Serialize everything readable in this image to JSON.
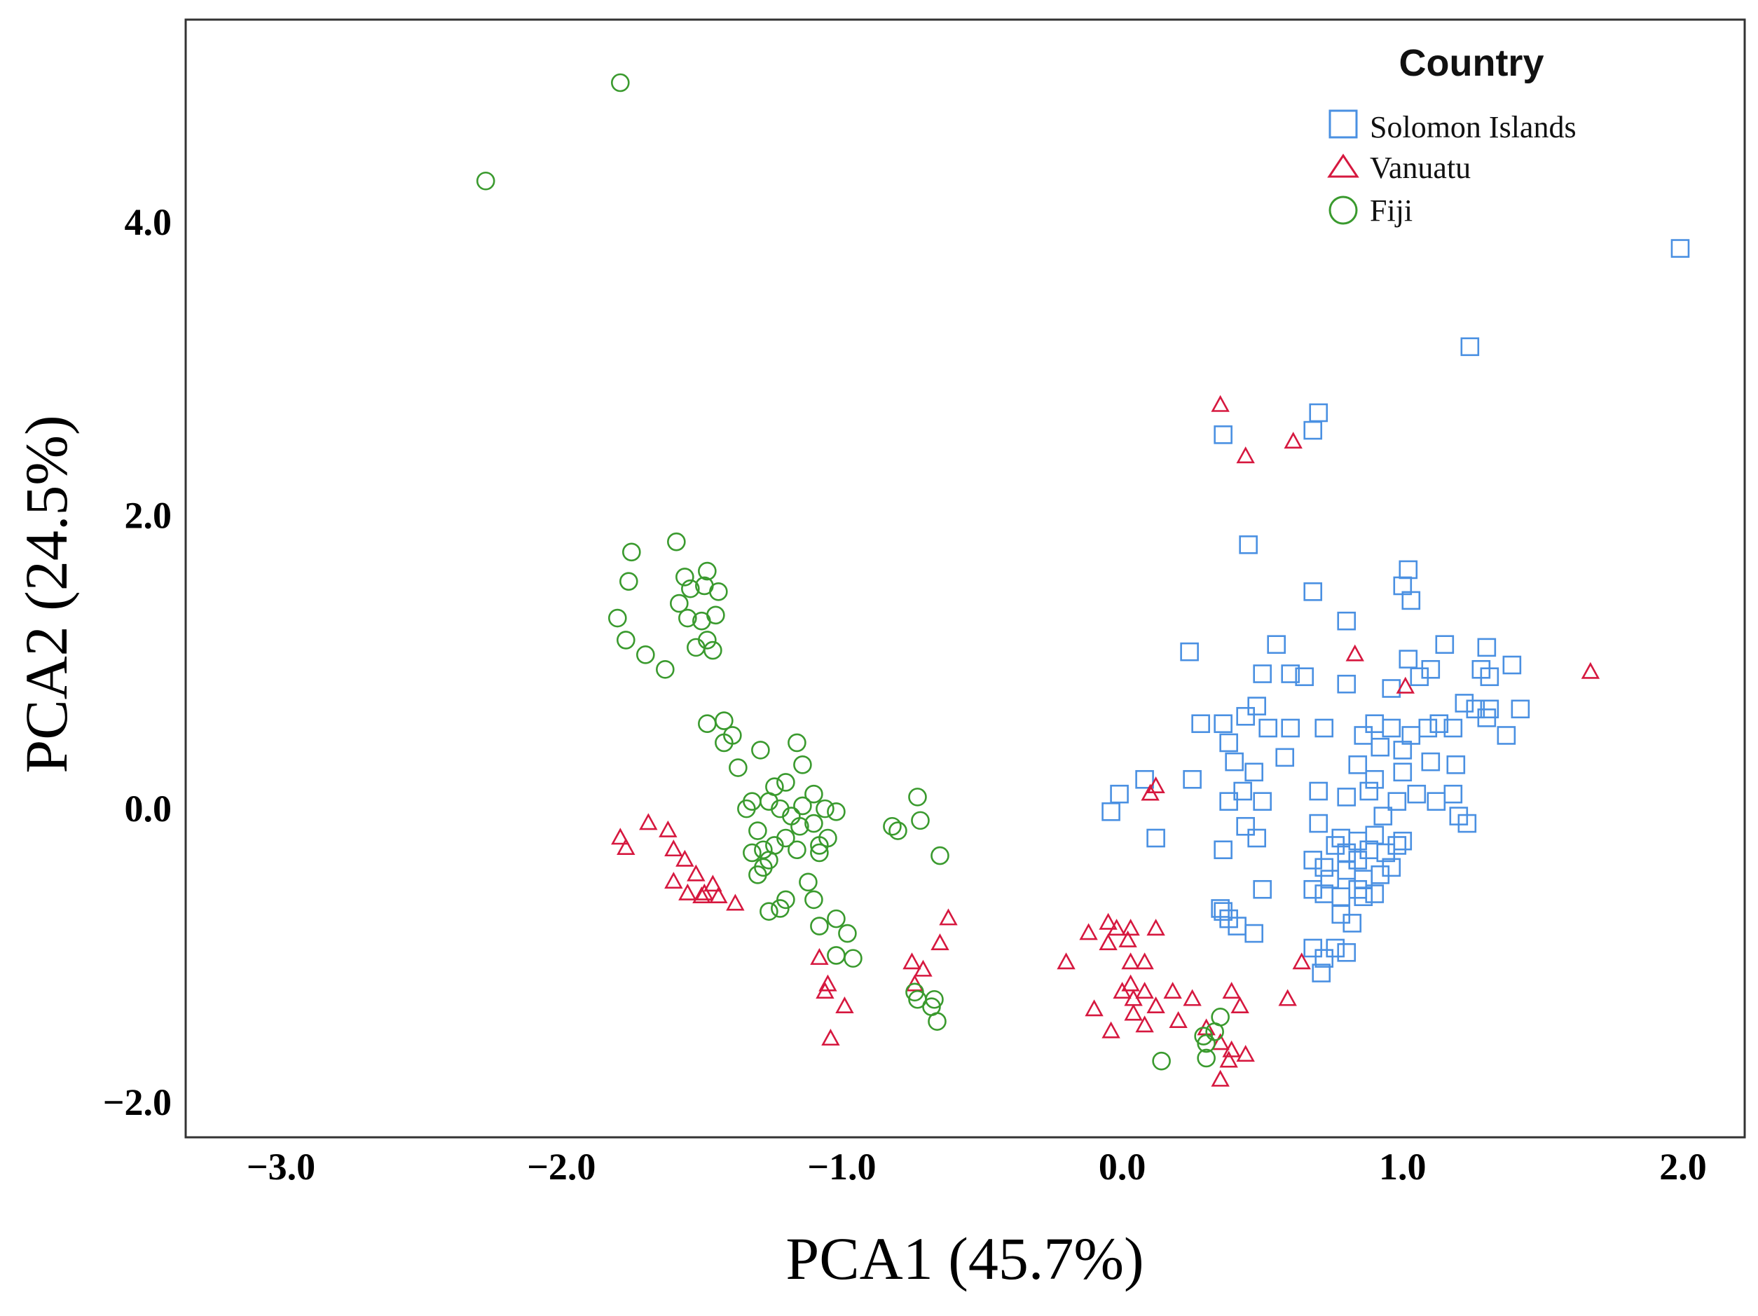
{
  "chart_data": {
    "type": "scatter",
    "xlabel": "PCA1 (45.7%)",
    "ylabel": "PCA2 (24.5%)",
    "xlim": [
      -3.34,
      2.22
    ],
    "ylim": [
      -2.24,
      5.38
    ],
    "x_ticks": [
      -3.0,
      -2.0,
      -1.0,
      0.0,
      1.0,
      2.0
    ],
    "y_ticks": [
      -2.0,
      0.0,
      2.0,
      4.0
    ],
    "x_tick_labels": [
      "−3.0",
      "−2.0",
      "−1.0",
      "0.0",
      "1.0",
      "2.0"
    ],
    "y_tick_labels": [
      "−2.0",
      "0.0",
      "2.0",
      "4.0"
    ],
    "grid": false,
    "legend": {
      "title": "Country",
      "position": "top-right"
    },
    "series": [
      {
        "name": "Solomon Islands",
        "marker": "square",
        "color": "#4a90e2",
        "points": [
          [
            1.99,
            3.82
          ],
          [
            1.24,
            3.15
          ],
          [
            0.7,
            2.7
          ],
          [
            0.36,
            2.55
          ],
          [
            0.68,
            2.58
          ],
          [
            0.45,
            1.8
          ],
          [
            1.02,
            1.63
          ],
          [
            0.68,
            1.48
          ],
          [
            1.0,
            1.52
          ],
          [
            1.03,
            1.42
          ],
          [
            0.8,
            1.28
          ],
          [
            0.24,
            1.07
          ],
          [
            0.55,
            1.12
          ],
          [
            1.15,
            1.12
          ],
          [
            1.3,
            1.1
          ],
          [
            0.5,
            0.92
          ],
          [
            0.6,
            0.92
          ],
          [
            0.65,
            0.9
          ],
          [
            1.02,
            1.02
          ],
          [
            1.28,
            0.95
          ],
          [
            1.39,
            0.98
          ],
          [
            0.8,
            0.85
          ],
          [
            0.96,
            0.82
          ],
          [
            1.06,
            0.9
          ],
          [
            1.31,
            0.9
          ],
          [
            1.1,
            0.95
          ],
          [
            0.28,
            0.58
          ],
          [
            0.36,
            0.58
          ],
          [
            0.44,
            0.63
          ],
          [
            0.48,
            0.7
          ],
          [
            0.52,
            0.55
          ],
          [
            0.6,
            0.55
          ],
          [
            0.72,
            0.55
          ],
          [
            0.86,
            0.5
          ],
          [
            0.9,
            0.58
          ],
          [
            0.96,
            0.55
          ],
          [
            1.03,
            0.5
          ],
          [
            1.09,
            0.55
          ],
          [
            1.13,
            0.58
          ],
          [
            1.18,
            0.55
          ],
          [
            1.22,
            0.72
          ],
          [
            1.26,
            0.68
          ],
          [
            1.31,
            0.68
          ],
          [
            1.37,
            0.5
          ],
          [
            1.42,
            0.68
          ],
          [
            1.3,
            0.62
          ],
          [
            0.38,
            0.45
          ],
          [
            0.4,
            0.32
          ],
          [
            0.47,
            0.25
          ],
          [
            0.58,
            0.35
          ],
          [
            0.92,
            0.42
          ],
          [
            1.0,
            0.4
          ],
          [
            1.1,
            0.32
          ],
          [
            1.19,
            0.3
          ],
          [
            -0.04,
            -0.02
          ],
          [
            -0.01,
            0.1
          ],
          [
            0.08,
            0.2
          ],
          [
            0.25,
            0.2
          ],
          [
            0.38,
            0.05
          ],
          [
            0.43,
            0.12
          ],
          [
            0.5,
            0.05
          ],
          [
            0.7,
            0.12
          ],
          [
            0.8,
            0.08
          ],
          [
            0.88,
            0.12
          ],
          [
            0.98,
            0.05
          ],
          [
            1.05,
            0.1
          ],
          [
            1.12,
            0.05
          ],
          [
            1.18,
            0.1
          ],
          [
            1.2,
            -0.05
          ],
          [
            1.23,
            -0.1
          ],
          [
            0.12,
            -0.2
          ],
          [
            0.36,
            -0.28
          ],
          [
            0.44,
            -0.12
          ],
          [
            0.48,
            -0.2
          ],
          [
            0.7,
            -0.1
          ],
          [
            0.78,
            -0.2
          ],
          [
            0.84,
            -0.22
          ],
          [
            0.88,
            -0.28
          ],
          [
            0.94,
            -0.3
          ],
          [
            0.98,
            -0.25
          ],
          [
            1.0,
            -0.22
          ],
          [
            0.68,
            -0.35
          ],
          [
            0.72,
            -0.4
          ],
          [
            0.8,
            -0.42
          ],
          [
            0.86,
            -0.48
          ],
          [
            0.92,
            -0.45
          ],
          [
            0.68,
            -0.55
          ],
          [
            0.72,
            -0.58
          ],
          [
            0.78,
            -0.6
          ],
          [
            0.84,
            -0.55
          ],
          [
            0.9,
            -0.58
          ],
          [
            0.78,
            -0.72
          ],
          [
            0.82,
            -0.78
          ],
          [
            0.68,
            -0.95
          ],
          [
            0.72,
            -1.02
          ],
          [
            0.76,
            -0.95
          ],
          [
            0.8,
            -0.98
          ],
          [
            0.71,
            -1.12
          ],
          [
            0.35,
            -0.68
          ],
          [
            0.38,
            -0.75
          ],
          [
            0.41,
            -0.8
          ],
          [
            0.47,
            -0.85
          ],
          [
            0.5,
            -0.55
          ],
          [
            0.36,
            -0.7
          ],
          [
            0.76,
            -0.25
          ],
          [
            0.84,
            -0.35
          ],
          [
            0.9,
            -0.18
          ],
          [
            0.96,
            -0.4
          ],
          [
            0.74,
            -0.48
          ],
          [
            0.8,
            -0.3
          ],
          [
            0.86,
            -0.6
          ],
          [
            0.93,
            -0.05
          ],
          [
            1.0,
            0.25
          ],
          [
            0.84,
            0.3
          ],
          [
            0.9,
            0.2
          ]
        ]
      },
      {
        "name": "Vanuatu",
        "marker": "triangle",
        "color": "#d6183f",
        "points": [
          [
            0.35,
            2.75
          ],
          [
            0.61,
            2.5
          ],
          [
            0.44,
            2.4
          ],
          [
            1.67,
            0.93
          ],
          [
            0.83,
            1.05
          ],
          [
            1.01,
            0.83
          ],
          [
            0.12,
            0.15
          ],
          [
            0.1,
            0.1
          ],
          [
            -1.79,
            -0.2
          ],
          [
            -1.77,
            -0.27
          ],
          [
            -1.69,
            -0.1
          ],
          [
            -1.62,
            -0.15
          ],
          [
            -1.6,
            -0.28
          ],
          [
            -1.56,
            -0.35
          ],
          [
            -1.52,
            -0.45
          ],
          [
            -1.6,
            -0.5
          ],
          [
            -1.55,
            -0.58
          ],
          [
            -1.5,
            -0.6
          ],
          [
            -1.46,
            -0.52
          ],
          [
            -1.49,
            -0.58
          ],
          [
            -1.44,
            -0.6
          ],
          [
            -1.38,
            -0.65
          ],
          [
            -1.08,
            -1.02
          ],
          [
            -1.05,
            -1.2
          ],
          [
            -1.06,
            -1.25
          ],
          [
            -0.99,
            -1.35
          ],
          [
            -1.04,
            -1.57
          ],
          [
            -0.75,
            -1.05
          ],
          [
            -0.71,
            -1.1
          ],
          [
            -0.74,
            -1.2
          ],
          [
            -0.65,
            -0.92
          ],
          [
            -0.62,
            -0.75
          ],
          [
            -0.2,
            -1.05
          ],
          [
            -0.12,
            -0.85
          ],
          [
            -0.05,
            -0.78
          ],
          [
            -0.02,
            -0.82
          ],
          [
            -0.05,
            -0.92
          ],
          [
            0.03,
            -0.82
          ],
          [
            0.12,
            -0.82
          ],
          [
            0.03,
            -1.05
          ],
          [
            0.08,
            -1.05
          ],
          [
            0.03,
            -1.2
          ],
          [
            0.0,
            -1.25
          ],
          [
            0.04,
            -1.3
          ],
          [
            0.08,
            -1.25
          ],
          [
            0.18,
            -1.25
          ],
          [
            0.25,
            -1.3
          ],
          [
            0.12,
            -1.35
          ],
          [
            0.04,
            -1.4
          ],
          [
            -0.1,
            -1.37
          ],
          [
            0.08,
            -1.48
          ],
          [
            0.2,
            -1.45
          ],
          [
            0.3,
            -1.5
          ],
          [
            -0.04,
            -1.52
          ],
          [
            0.35,
            -1.6
          ],
          [
            0.39,
            -1.65
          ],
          [
            0.44,
            -1.68
          ],
          [
            0.38,
            -1.72
          ],
          [
            0.35,
            -1.85
          ],
          [
            0.39,
            -1.25
          ],
          [
            0.42,
            -1.35
          ],
          [
            0.59,
            -1.3
          ],
          [
            0.64,
            -1.05
          ],
          [
            0.02,
            -0.9
          ]
        ]
      },
      {
        "name": "Fiji",
        "marker": "circle",
        "color": "#3a9a2e",
        "points": [
          [
            -1.79,
            4.95
          ],
          [
            -2.27,
            4.28
          ],
          [
            -1.59,
            1.82
          ],
          [
            -1.75,
            1.75
          ],
          [
            -1.76,
            1.55
          ],
          [
            -1.56,
            1.58
          ],
          [
            -1.54,
            1.5
          ],
          [
            -1.48,
            1.62
          ],
          [
            -1.49,
            1.52
          ],
          [
            -1.44,
            1.48
          ],
          [
            -1.58,
            1.4
          ],
          [
            -1.55,
            1.3
          ],
          [
            -1.5,
            1.28
          ],
          [
            -1.45,
            1.32
          ],
          [
            -1.8,
            1.3
          ],
          [
            -1.77,
            1.15
          ],
          [
            -1.7,
            1.05
          ],
          [
            -1.63,
            0.95
          ],
          [
            -1.52,
            1.1
          ],
          [
            -1.48,
            1.15
          ],
          [
            -1.46,
            1.08
          ],
          [
            -1.42,
            0.6
          ],
          [
            -1.39,
            0.5
          ],
          [
            -1.48,
            0.58
          ],
          [
            -1.42,
            0.45
          ],
          [
            -1.29,
            0.4
          ],
          [
            -1.16,
            0.45
          ],
          [
            -1.14,
            0.3
          ],
          [
            -1.37,
            0.28
          ],
          [
            -1.24,
            0.15
          ],
          [
            -1.2,
            0.18
          ],
          [
            -1.26,
            0.05
          ],
          [
            -1.32,
            0.05
          ],
          [
            -1.18,
            -0.05
          ],
          [
            -1.1,
            0.1
          ],
          [
            -1.06,
            0.0
          ],
          [
            -1.02,
            -0.02
          ],
          [
            -1.1,
            -0.1
          ],
          [
            -1.15,
            -0.12
          ],
          [
            -1.2,
            -0.2
          ],
          [
            -1.24,
            -0.25
          ],
          [
            -1.28,
            -0.28
          ],
          [
            -1.32,
            -0.3
          ],
          [
            -1.26,
            -0.35
          ],
          [
            -1.16,
            -0.28
          ],
          [
            -1.08,
            -0.25
          ],
          [
            -1.05,
            -0.2
          ],
          [
            -1.28,
            -0.4
          ],
          [
            -1.3,
            -0.45
          ],
          [
            -1.12,
            -0.5
          ],
          [
            -1.2,
            -0.62
          ],
          [
            -1.22,
            -0.68
          ],
          [
            -1.26,
            -0.7
          ],
          [
            -1.1,
            -0.62
          ],
          [
            -1.08,
            -0.8
          ],
          [
            -1.02,
            -0.75
          ],
          [
            -0.98,
            -0.85
          ],
          [
            -1.02,
            -1.0
          ],
          [
            -0.96,
            -1.02
          ],
          [
            -0.82,
            -0.12
          ],
          [
            -0.8,
            -0.15
          ],
          [
            -0.73,
            0.08
          ],
          [
            -0.72,
            -0.08
          ],
          [
            -0.65,
            -0.32
          ],
          [
            -0.74,
            -1.25
          ],
          [
            -0.73,
            -1.3
          ],
          [
            -0.68,
            -1.35
          ],
          [
            -0.67,
            -1.3
          ],
          [
            -0.66,
            -1.45
          ],
          [
            0.14,
            -1.72
          ],
          [
            0.3,
            -1.6
          ],
          [
            0.33,
            -1.52
          ],
          [
            0.35,
            -1.42
          ],
          [
            0.29,
            -1.55
          ],
          [
            0.3,
            -1.7
          ],
          [
            -1.34,
            0.0
          ],
          [
            -1.14,
            0.02
          ],
          [
            -1.08,
            -0.3
          ],
          [
            -1.3,
            -0.15
          ],
          [
            -1.22,
            0.0
          ]
        ]
      }
    ]
  }
}
